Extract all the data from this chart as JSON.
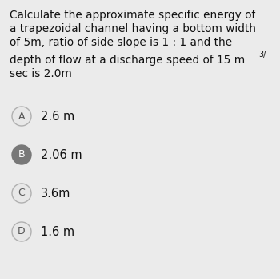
{
  "background_color": "#ebebeb",
  "text_color": "#111111",
  "question_line0": "Calculate the approximate specific energy of",
  "question_line1": "a trapezoidal channel having a bottom width",
  "question_line2": "of 5m, ratio of side slope is 1 : 1 and the",
  "question_line3_main": "depth of flow at a discharge speed of 15 m",
  "question_line3_super": "3/",
  "question_line4": "sec is 2.0m",
  "options": [
    {
      "label": "A",
      "text": "2.6 m",
      "selected": false
    },
    {
      "label": "B",
      "text": "2.06 m",
      "selected": true
    },
    {
      "label": "C",
      "text": "3.6m",
      "selected": false
    },
    {
      "label": "D",
      "text": "1.6 m",
      "selected": false
    }
  ],
  "circle_unselected_facecolor": "#e8e8e8",
  "circle_unselected_edgecolor": "#b0b0b0",
  "circle_selected_facecolor": "#787878",
  "circle_selected_edgecolor": "#787878",
  "label_unselected_color": "#555555",
  "label_selected_color": "#ffffff",
  "option_text_color": "#111111",
  "q_fontsize": 9.8,
  "opt_fontsize": 10.5,
  "label_fontsize": 9.0
}
